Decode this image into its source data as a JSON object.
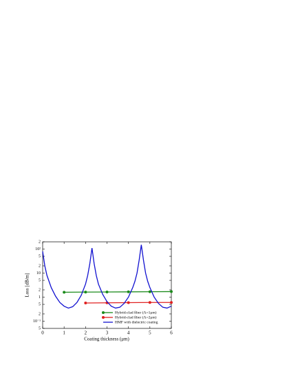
{
  "chart_data": {
    "type": "line",
    "xlabel": "Coating thickness (μm)",
    "ylabel": "Loss [dB/m]",
    "log_y": true,
    "xlim": [
      0,
      6
    ],
    "xticks": [
      0,
      1,
      2,
      3,
      4,
      5,
      6
    ],
    "ylim": [
      0.05,
      200
    ],
    "yticks": [
      {
        "value": 0.05,
        "label": "5"
      },
      {
        "value": 0.1,
        "label": "10⁻¹"
      },
      {
        "value": 0.2,
        "label": "2"
      },
      {
        "value": 0.5,
        "label": "5"
      },
      1,
      {
        "value": 2,
        "label": "2"
      },
      {
        "value": 5,
        "label": "5"
      },
      10,
      {
        "value": 20,
        "label": "2"
      },
      {
        "value": 50,
        "label": "5"
      },
      {
        "value": 100,
        "label": "10²"
      },
      {
        "value": 200,
        "label": "2"
      }
    ],
    "legend": "lower right",
    "series": [
      {
        "name": "Hybrid-clad fiber (Λ=1μm)",
        "color": "#1a8a1a",
        "markers": true,
        "x": [
          1,
          2,
          3,
          4,
          5,
          6
        ],
        "values": [
          1.6,
          1.62,
          1.64,
          1.66,
          1.68,
          1.7
        ]
      },
      {
        "name": "Hybrid-clad fiber (Λ=2μm)",
        "color": "#e02020",
        "markers": true,
        "x": [
          2,
          3,
          4,
          5,
          6
        ],
        "values": [
          0.57,
          0.58,
          0.59,
          0.6,
          0.6
        ]
      },
      {
        "name": "HMF with dielectric coating",
        "color": "#1010d0",
        "markers": false,
        "x": [
          0,
          0.1,
          0.2,
          0.4,
          0.6,
          0.8,
          1.0,
          1.2,
          1.4,
          1.6,
          1.8,
          2.0,
          2.1,
          2.2,
          2.3,
          2.4,
          2.5,
          2.6,
          2.8,
          3.0,
          3.2,
          3.4,
          3.6,
          3.8,
          4.0,
          4.2,
          4.3,
          4.4,
          4.5,
          4.6,
          4.7,
          4.8,
          4.9,
          5.0,
          5.2,
          5.4,
          5.6,
          5.8,
          6.0
        ],
        "values": [
          80,
          20,
          8,
          2.5,
          1.1,
          0.6,
          0.42,
          0.35,
          0.4,
          0.6,
          1.2,
          3.5,
          8,
          25,
          110,
          25,
          8,
          3.5,
          1.3,
          0.65,
          0.42,
          0.35,
          0.38,
          0.55,
          1.0,
          2.5,
          4.5,
          10,
          35,
          150,
          35,
          10,
          4.5,
          2.5,
          1.0,
          0.55,
          0.38,
          0.35,
          0.42
        ]
      }
    ]
  }
}
